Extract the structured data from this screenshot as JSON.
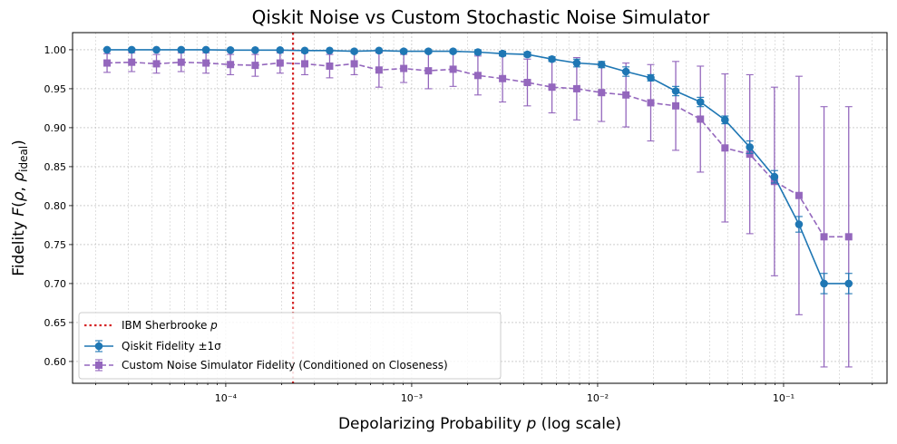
{
  "chart_data": {
    "type": "line",
    "title": "Qiskit Noise vs Custom Stochastic Noise Simulator",
    "xlabel": "Depolarizing Probability p (log scale)",
    "ylabel": "Fidelity F(ρ, ρ_ideal)",
    "x_scale": "log",
    "xlim": [
      1.5e-05,
      0.36
    ],
    "ylim": [
      0.572,
      1.022
    ],
    "y_ticks": [
      0.6,
      0.65,
      0.7,
      0.75,
      0.8,
      0.85,
      0.9,
      0.95,
      1.0
    ],
    "x_major_ticks": [
      0.0001,
      0.001,
      0.01,
      0.1
    ],
    "x_tick_labels": [
      "10⁻⁴",
      "10⁻³",
      "10⁻²",
      "10⁻¹"
    ],
    "grid": true,
    "legend_position": "lower-left",
    "vline": {
      "name": "IBM Sherbrooke p",
      "x": 0.00023,
      "color": "#d62728"
    },
    "x": [
      2.3e-05,
      3.12e-05,
      4.24e-05,
      5.76e-05,
      7.83e-05,
      0.000106,
      0.000144,
      0.000196,
      0.000266,
      0.000362,
      0.000491,
      0.000667,
      0.000906,
      0.00123,
      0.00167,
      0.00227,
      0.00308,
      0.00419,
      0.00568,
      0.00772,
      0.0105,
      0.0142,
      0.0193,
      0.0263,
      0.0357,
      0.0484,
      0.0658,
      0.0893,
      0.121,
      0.165,
      0.224
    ],
    "series": [
      {
        "name": "Qiskit Fidelity ±1σ",
        "color": "#1f77b4",
        "marker": "circle",
        "linestyle": "solid",
        "values": [
          1.0,
          1.0,
          1.0,
          1.0,
          1.0,
          0.9995,
          0.9995,
          0.9995,
          0.999,
          0.999,
          0.998,
          0.999,
          0.998,
          0.998,
          0.998,
          0.997,
          0.995,
          0.994,
          0.988,
          0.983,
          0.981,
          0.972,
          0.964,
          0.947,
          0.933,
          0.91,
          0.875,
          0.837,
          0.776,
          0.7,
          0.7
        ],
        "errors": [
          0.001,
          0.001,
          0.001,
          0.001,
          0.001,
          0.001,
          0.001,
          0.001,
          0.001,
          0.001,
          0.002,
          0.001,
          0.002,
          0.002,
          0.002,
          0.003,
          0.003,
          0.003,
          0.003,
          0.005,
          0.004,
          0.006,
          0.004,
          0.006,
          0.006,
          0.005,
          0.008,
          0.008,
          0.01,
          0.013,
          0.013
        ]
      },
      {
        "name": "Custom Noise Simulator Fidelity (Conditioned on Closeness)",
        "color": "#9467bd",
        "marker": "square",
        "linestyle": "dashed",
        "values": [
          0.983,
          0.984,
          0.982,
          0.984,
          0.983,
          0.981,
          0.98,
          0.983,
          0.982,
          0.979,
          0.982,
          0.974,
          0.976,
          0.973,
          0.975,
          0.967,
          0.963,
          0.958,
          0.952,
          0.95,
          0.945,
          0.942,
          0.932,
          0.928,
          0.911,
          0.874,
          0.866,
          0.831,
          0.813,
          0.76,
          0.76
        ],
        "errors": [
          0.012,
          0.012,
          0.012,
          0.012,
          0.013,
          0.013,
          0.014,
          0.013,
          0.014,
          0.015,
          0.014,
          0.022,
          0.018,
          0.023,
          0.022,
          0.025,
          0.03,
          0.03,
          0.033,
          0.04,
          0.037,
          0.041,
          0.049,
          0.057,
          0.068,
          0.095,
          0.102,
          0.121,
          0.153,
          0.167,
          0.167
        ]
      }
    ]
  }
}
